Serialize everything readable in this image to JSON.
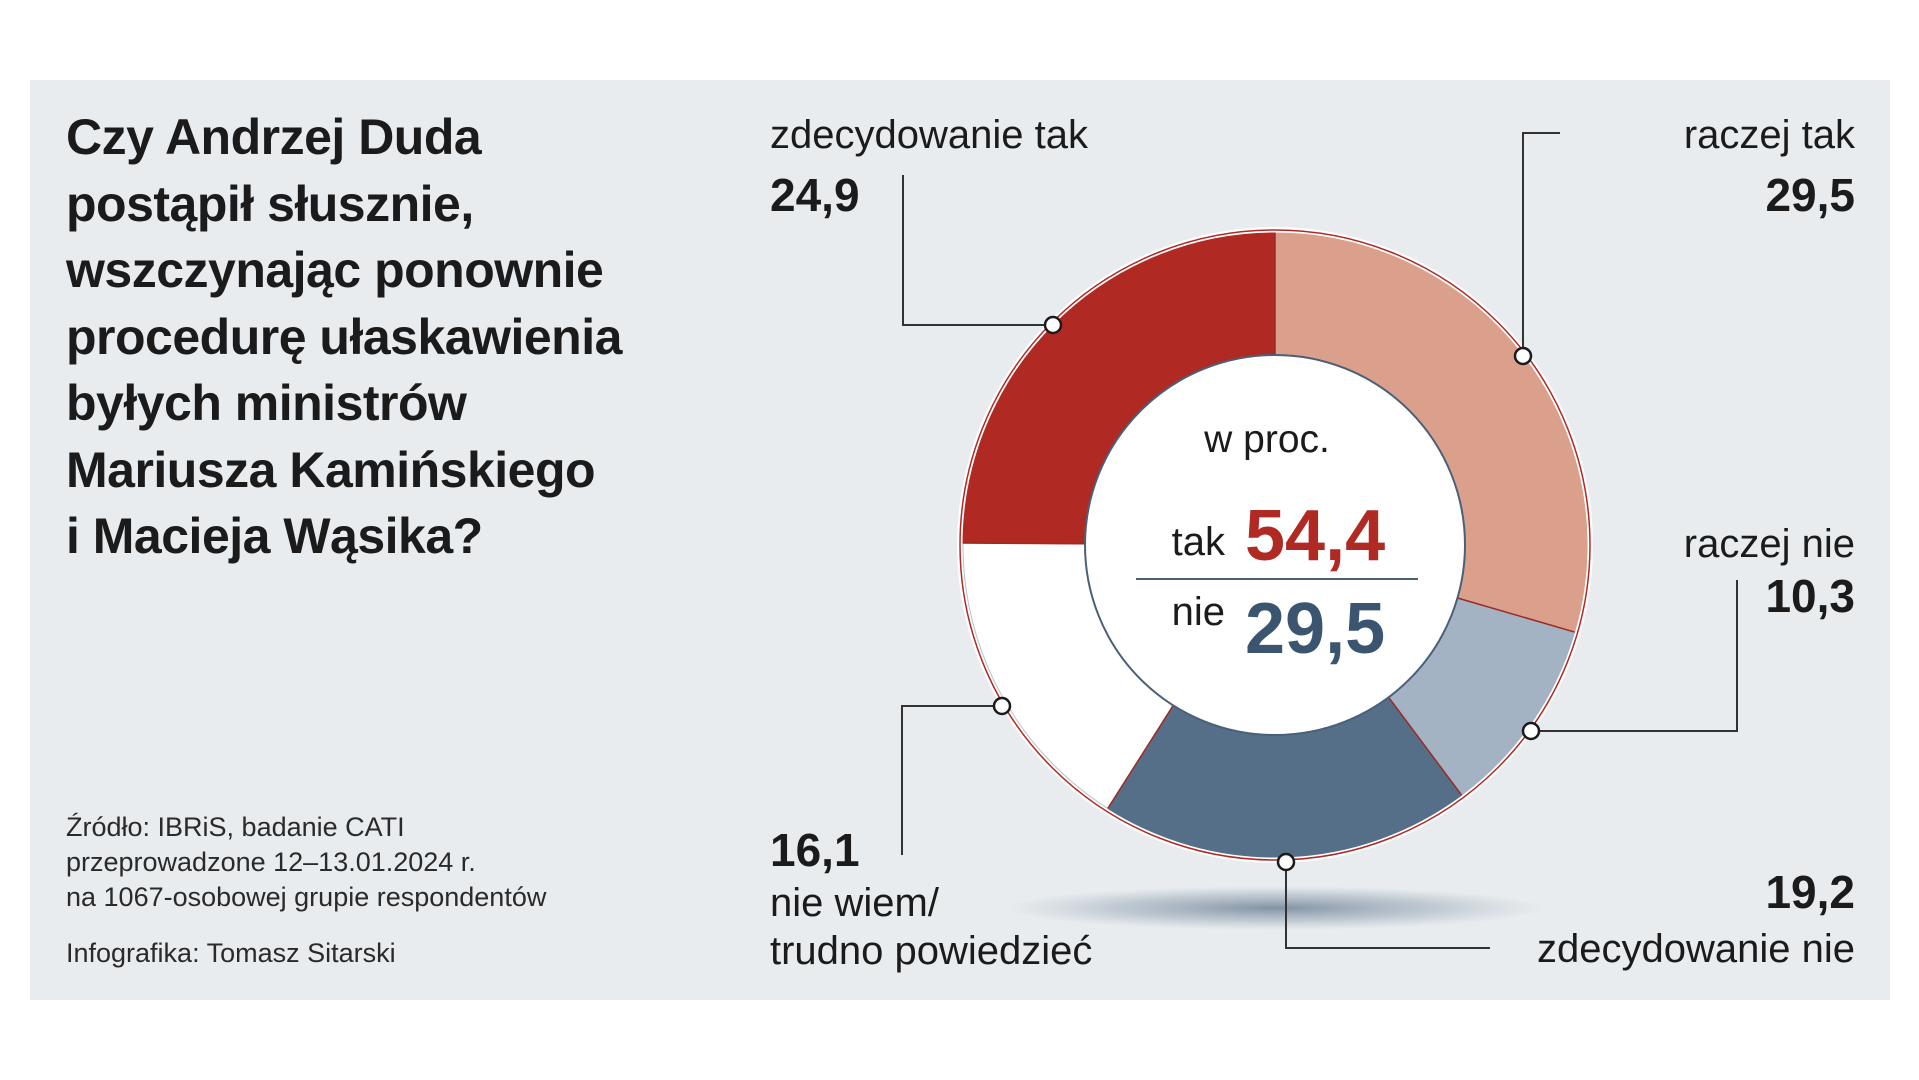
{
  "title_lines": [
    "Czy Andrzej Duda",
    "postąpił słusznie,",
    "wszczynając ponownie",
    "procedurę ułaskawienia",
    "byłych ministrów",
    "Mariusza Kamińskiego",
    "i Macieja Wąsika?"
  ],
  "source_lines": [
    "Źródło: IBRiS, badanie CATI",
    "przeprowadzone 12–13.01.2024 r.",
    "na 1067-osobowej grupie respondentów"
  ],
  "credit": "Infografika: Tomasz Sitarski",
  "colors": {
    "panel": "#e8ecef",
    "tak_accent": "#b02a23",
    "nie_accent": "#3b5571",
    "ring_outline": "#b02a23"
  },
  "chart_data": {
    "type": "pie",
    "variant": "donut",
    "unit_label": "w proc.",
    "slices": [
      {
        "label": "zdecydowanie tak",
        "value": 24.9,
        "display": "24,9",
        "color": "#b02a23"
      },
      {
        "label": "raczej tak",
        "value": 29.5,
        "display": "29,5",
        "color": "#dba08c"
      },
      {
        "label": "raczej nie",
        "value": 10.3,
        "display": "10,3",
        "color": "#a3b3c3"
      },
      {
        "label": "zdecydowanie nie",
        "value": 19.2,
        "display": "19,2",
        "color": "#566f89"
      },
      {
        "label_lines": [
          "nie wiem/",
          "trudno powiedzieć"
        ],
        "value": 16.1,
        "display": "16,1",
        "color": "#ffffff"
      }
    ],
    "summary": {
      "tak": {
        "label": "tak",
        "value": 54.4,
        "display": "54,4"
      },
      "nie": {
        "label": "nie",
        "value": 29.5,
        "display": "29,5"
      }
    }
  }
}
